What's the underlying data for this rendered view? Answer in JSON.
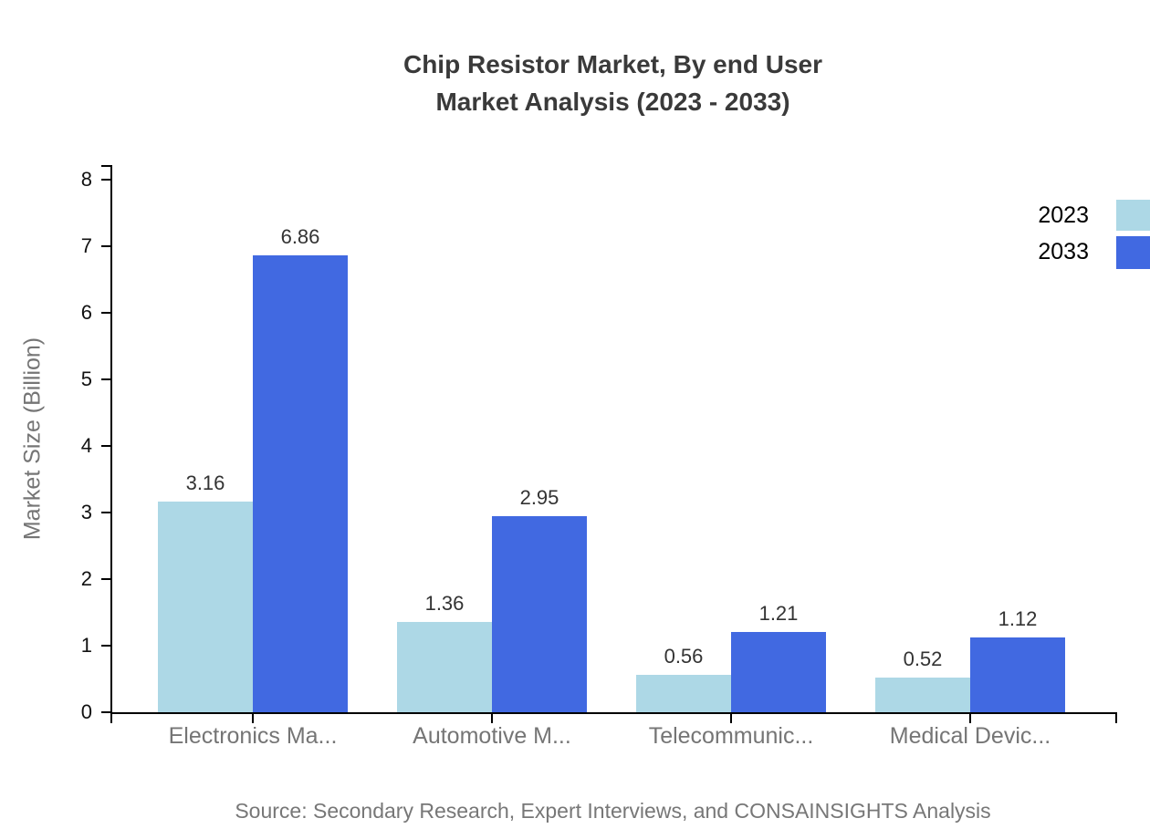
{
  "title": {
    "line1": "Chip Resistor Market, By end User",
    "line2": "Market Analysis (2023 - 2033)"
  },
  "chart_data": {
    "type": "bar",
    "title": "Chip Resistor Market, By end User Market Analysis (2023 - 2033)",
    "categories": [
      "Electronics Ma...",
      "Automotive M...",
      "Telecommunic...",
      "Medical Devic..."
    ],
    "series": [
      {
        "name": "2023",
        "color": "#ADD8E6",
        "values": [
          3.16,
          1.36,
          0.56,
          0.52
        ]
      },
      {
        "name": "2033",
        "color": "#4169E1",
        "values": [
          6.86,
          2.95,
          1.21,
          1.12
        ]
      }
    ],
    "ylabel": "Market Size (Billion)",
    "xlabel": "",
    "ylim": [
      0,
      8
    ],
    "yticks": [
      0,
      1,
      2,
      3,
      4,
      5,
      6,
      7,
      8
    ],
    "grid": false,
    "legend_position": "top-right",
    "value_label_decimals": 2
  },
  "source": "Source: Secondary Research, Expert Interviews, and CONSAINSIGHTS Analysis"
}
